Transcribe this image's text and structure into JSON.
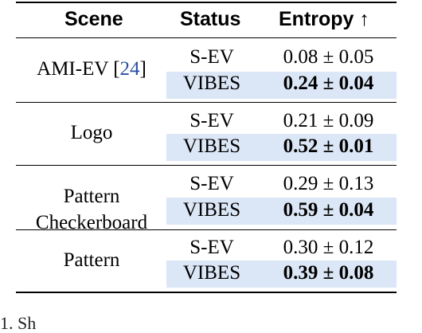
{
  "headers": {
    "scene": "Scene",
    "status": "Status",
    "entropy": "Entropy ↑"
  },
  "groups": [
    {
      "scene": "AMI-EV",
      "scene_ref": "24",
      "rows": [
        {
          "status": "S-EV",
          "value": "0.08 ± 0.05"
        },
        {
          "status": "VIBES",
          "value": "0.24 ± 0.04"
        }
      ]
    },
    {
      "scene": "Logo",
      "rows": [
        {
          "status": "S-EV",
          "value": "0.21 ± 0.09"
        },
        {
          "status": "VIBES",
          "value": "0.52 ± 0.01"
        }
      ]
    },
    {
      "scene_line1": "Pattern",
      "scene_line2": "Checkerboard",
      "rows": [
        {
          "status": "S-EV",
          "value": "0.29 ± 0.13"
        },
        {
          "status": "VIBES",
          "value": "0.59 ± 0.04"
        }
      ]
    },
    {
      "scene": "Pattern",
      "rows": [
        {
          "status": "S-EV",
          "value": "0.30 ± 0.12"
        },
        {
          "status": "VIBES",
          "value": "0.39 ± 0.08"
        }
      ]
    }
  ],
  "caption_fragment": "1.  Sh"
}
